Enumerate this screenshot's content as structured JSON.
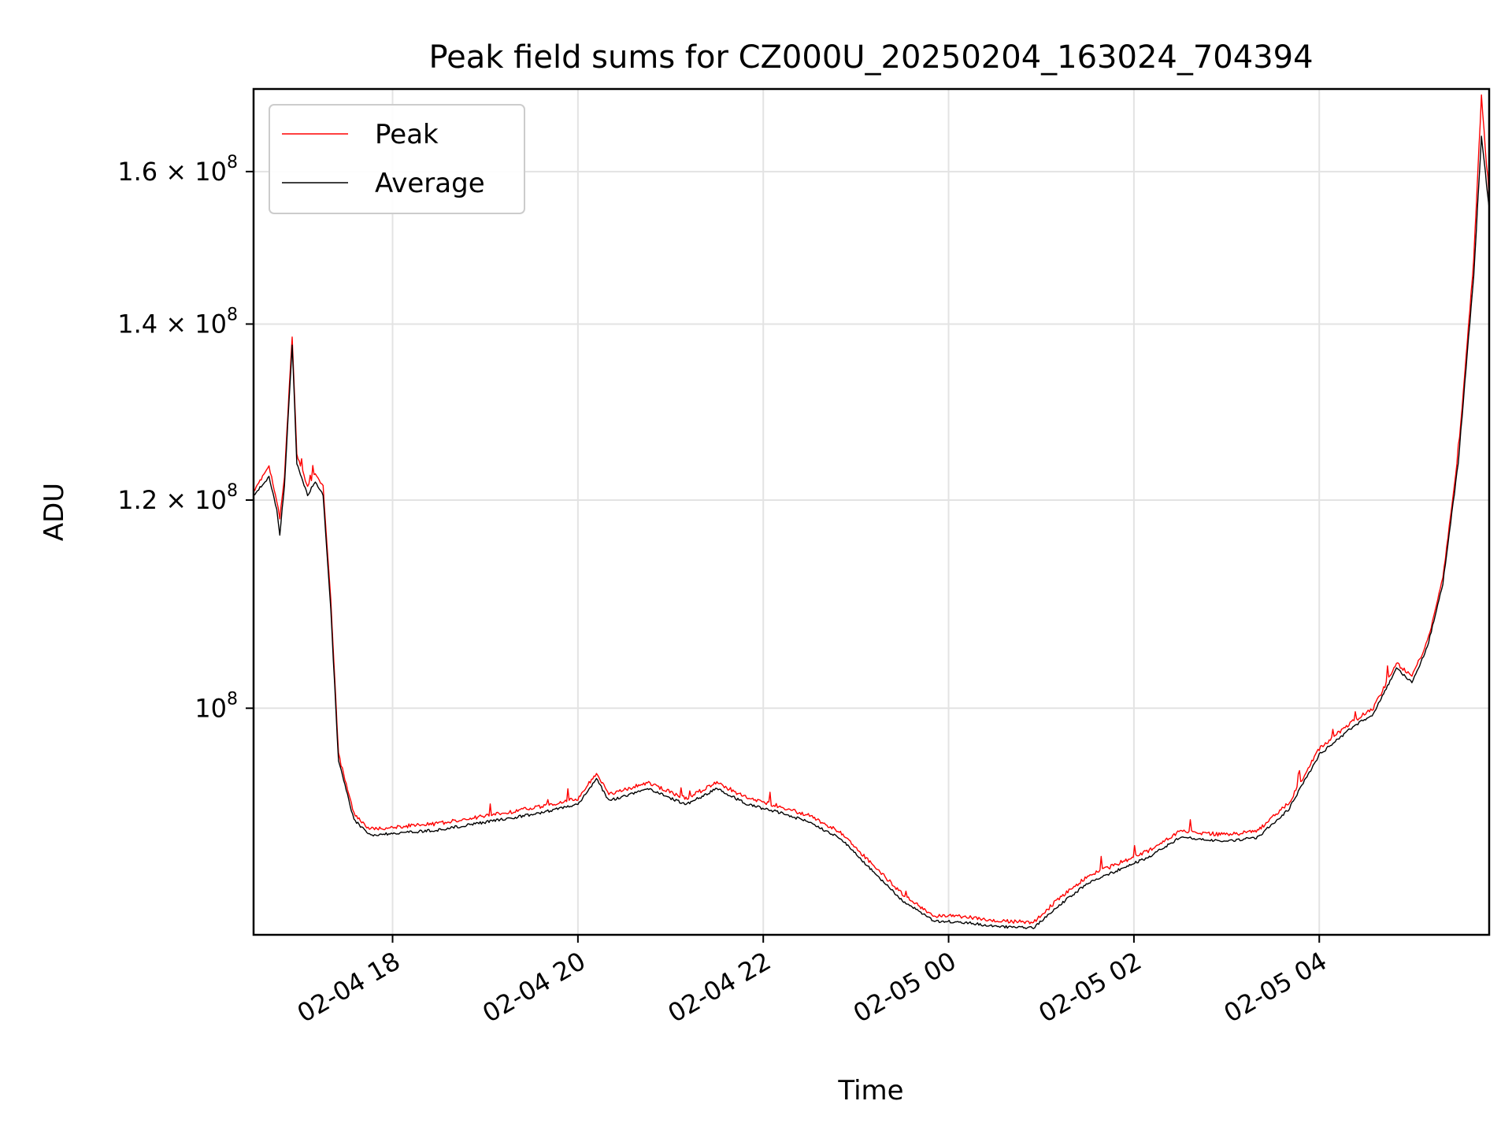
{
  "chart_data": {
    "type": "line",
    "title": "Peak field sums for CZ000U_20250204_163024_704394",
    "xlabel": "Time",
    "ylabel": "ADU",
    "yscale": "log",
    "ylim": [
      82000000,
      172000000
    ],
    "xlim": [
      "2025-02-04 16:30",
      "2025-02-05 05:50"
    ],
    "grid": true,
    "legend_position": "top-left",
    "x_ticks": [
      {
        "value": "2025-02-04 18:00",
        "label": "02-04 18"
      },
      {
        "value": "2025-02-04 20:00",
        "label": "02-04 20"
      },
      {
        "value": "2025-02-04 22:00",
        "label": "02-04 22"
      },
      {
        "value": "2025-02-05 00:00",
        "label": "02-05 00"
      },
      {
        "value": "2025-02-05 02:00",
        "label": "02-05 02"
      },
      {
        "value": "2025-02-05 04:00",
        "label": "02-05 04"
      }
    ],
    "y_ticks": [
      {
        "value": 100000000,
        "base": "10",
        "exp": "8"
      },
      {
        "value": 120000000,
        "mantissa": "1.2",
        "base": "10",
        "exp": "8"
      },
      {
        "value": 140000000,
        "mantissa": "1.4",
        "base": "10",
        "exp": "8"
      },
      {
        "value": 160000000,
        "mantissa": "1.6",
        "base": "10",
        "exp": "8"
      }
    ],
    "series": [
      {
        "name": "Peak",
        "color": "#ff0000",
        "points": [
          [
            "2025-02-04 16:30",
            121000000
          ],
          [
            "2025-02-04 16:40",
            123500000
          ],
          [
            "2025-02-04 16:45",
            120000000
          ],
          [
            "2025-02-04 16:47",
            118000000
          ],
          [
            "2025-02-04 16:50",
            122500000
          ],
          [
            "2025-02-04 16:53",
            132000000
          ],
          [
            "2025-02-04 16:55",
            138500000
          ],
          [
            "2025-02-04 16:58",
            125000000
          ],
          [
            "2025-02-04 17:05",
            121500000
          ],
          [
            "2025-02-04 17:10",
            123000000
          ],
          [
            "2025-02-04 17:15",
            121500000
          ],
          [
            "2025-02-04 17:20",
            110000000
          ],
          [
            "2025-02-04 17:25",
            96000000
          ],
          [
            "2025-02-04 17:35",
            91200000
          ],
          [
            "2025-02-04 17:45",
            90000000
          ],
          [
            "2025-02-04 18:00",
            90100000
          ],
          [
            "2025-02-04 18:30",
            90400000
          ],
          [
            "2025-02-04 19:00",
            91000000
          ],
          [
            "2025-02-04 19:30",
            91600000
          ],
          [
            "2025-02-04 20:00",
            92400000
          ],
          [
            "2025-02-04 20:12",
            94500000
          ],
          [
            "2025-02-04 20:20",
            92700000
          ],
          [
            "2025-02-04 20:45",
            93700000
          ],
          [
            "2025-02-04 21:10",
            92400000
          ],
          [
            "2025-02-04 21:30",
            93700000
          ],
          [
            "2025-02-04 21:50",
            92400000
          ],
          [
            "2025-02-04 22:10",
            91800000
          ],
          [
            "2025-02-04 22:30",
            91000000
          ],
          [
            "2025-02-04 22:50",
            89700000
          ],
          [
            "2025-02-04 23:10",
            87300000
          ],
          [
            "2025-02-04 23:30",
            85000000
          ],
          [
            "2025-02-04 23:50",
            83400000
          ],
          [
            "2025-02-05 00:10",
            83300000
          ],
          [
            "2025-02-05 00:30",
            83000000
          ],
          [
            "2025-02-05 00:55",
            82900000
          ],
          [
            "2025-02-05 01:10",
            84500000
          ],
          [
            "2025-02-05 01:30",
            86300000
          ],
          [
            "2025-02-05 01:50",
            87300000
          ],
          [
            "2025-02-05 02:10",
            88300000
          ],
          [
            "2025-02-05 02:30",
            89800000
          ],
          [
            "2025-02-05 03:00",
            89500000
          ],
          [
            "2025-02-05 03:20",
            89800000
          ],
          [
            "2025-02-05 03:40",
            92000000
          ],
          [
            "2025-02-05 04:00",
            96500000
          ],
          [
            "2025-02-05 04:20",
            98700000
          ],
          [
            "2025-02-05 04:35",
            100000000
          ],
          [
            "2025-02-05 04:50",
            104000000
          ],
          [
            "2025-02-05 05:00",
            102800000
          ],
          [
            "2025-02-05 05:10",
            106000000
          ],
          [
            "2025-02-05 05:20",
            112000000
          ],
          [
            "2025-02-05 05:30",
            125000000
          ],
          [
            "2025-02-05 05:40",
            148000000
          ],
          [
            "2025-02-05 05:45",
            171000000
          ],
          [
            "2025-02-05 05:50",
            156000000
          ]
        ]
      },
      {
        "name": "Average",
        "color": "#000000",
        "points": [
          [
            "2025-02-04 16:30",
            120500000
          ],
          [
            "2025-02-04 16:40",
            122500000
          ],
          [
            "2025-02-04 16:45",
            119000000
          ],
          [
            "2025-02-04 16:47",
            116500000
          ],
          [
            "2025-02-04 16:50",
            121500000
          ],
          [
            "2025-02-04 16:53",
            131000000
          ],
          [
            "2025-02-04 16:55",
            137500000
          ],
          [
            "2025-02-04 16:58",
            124000000
          ],
          [
            "2025-02-04 17:05",
            120500000
          ],
          [
            "2025-02-04 17:10",
            122000000
          ],
          [
            "2025-02-04 17:15",
            120500000
          ],
          [
            "2025-02-04 17:20",
            109000000
          ],
          [
            "2025-02-04 17:25",
            95500000
          ],
          [
            "2025-02-04 17:35",
            90700000
          ],
          [
            "2025-02-04 17:45",
            89500000
          ],
          [
            "2025-02-04 18:00",
            89600000
          ],
          [
            "2025-02-04 18:30",
            89900000
          ],
          [
            "2025-02-04 19:00",
            90500000
          ],
          [
            "2025-02-04 19:30",
            91100000
          ],
          [
            "2025-02-04 20:00",
            91900000
          ],
          [
            "2025-02-04 20:12",
            94000000
          ],
          [
            "2025-02-04 20:20",
            92200000
          ],
          [
            "2025-02-04 20:45",
            93200000
          ],
          [
            "2025-02-04 21:10",
            91900000
          ],
          [
            "2025-02-04 21:30",
            93200000
          ],
          [
            "2025-02-04 21:50",
            91900000
          ],
          [
            "2025-02-04 22:10",
            91300000
          ],
          [
            "2025-02-04 22:30",
            90500000
          ],
          [
            "2025-02-04 22:50",
            89200000
          ],
          [
            "2025-02-04 23:10",
            86800000
          ],
          [
            "2025-02-04 23:30",
            84500000
          ],
          [
            "2025-02-04 23:50",
            83000000
          ],
          [
            "2025-02-05 00:10",
            82900000
          ],
          [
            "2025-02-05 00:30",
            82600000
          ],
          [
            "2025-02-05 00:55",
            82500000
          ],
          [
            "2025-02-05 01:10",
            84000000
          ],
          [
            "2025-02-05 01:30",
            85800000
          ],
          [
            "2025-02-05 01:50",
            86800000
          ],
          [
            "2025-02-05 02:10",
            87800000
          ],
          [
            "2025-02-05 02:30",
            89300000
          ],
          [
            "2025-02-05 03:00",
            89000000
          ],
          [
            "2025-02-05 03:20",
            89300000
          ],
          [
            "2025-02-05 03:40",
            91500000
          ],
          [
            "2025-02-05 04:00",
            96000000
          ],
          [
            "2025-02-05 04:20",
            98200000
          ],
          [
            "2025-02-05 04:35",
            99500000
          ],
          [
            "2025-02-05 04:50",
            103500000
          ],
          [
            "2025-02-05 05:00",
            102300000
          ],
          [
            "2025-02-05 05:10",
            105500000
          ],
          [
            "2025-02-05 05:20",
            111500000
          ],
          [
            "2025-02-05 05:30",
            124000000
          ],
          [
            "2025-02-05 05:40",
            146000000
          ],
          [
            "2025-02-05 05:45",
            165000000
          ],
          [
            "2025-02-05 05:50",
            155000000
          ]
        ]
      }
    ]
  }
}
